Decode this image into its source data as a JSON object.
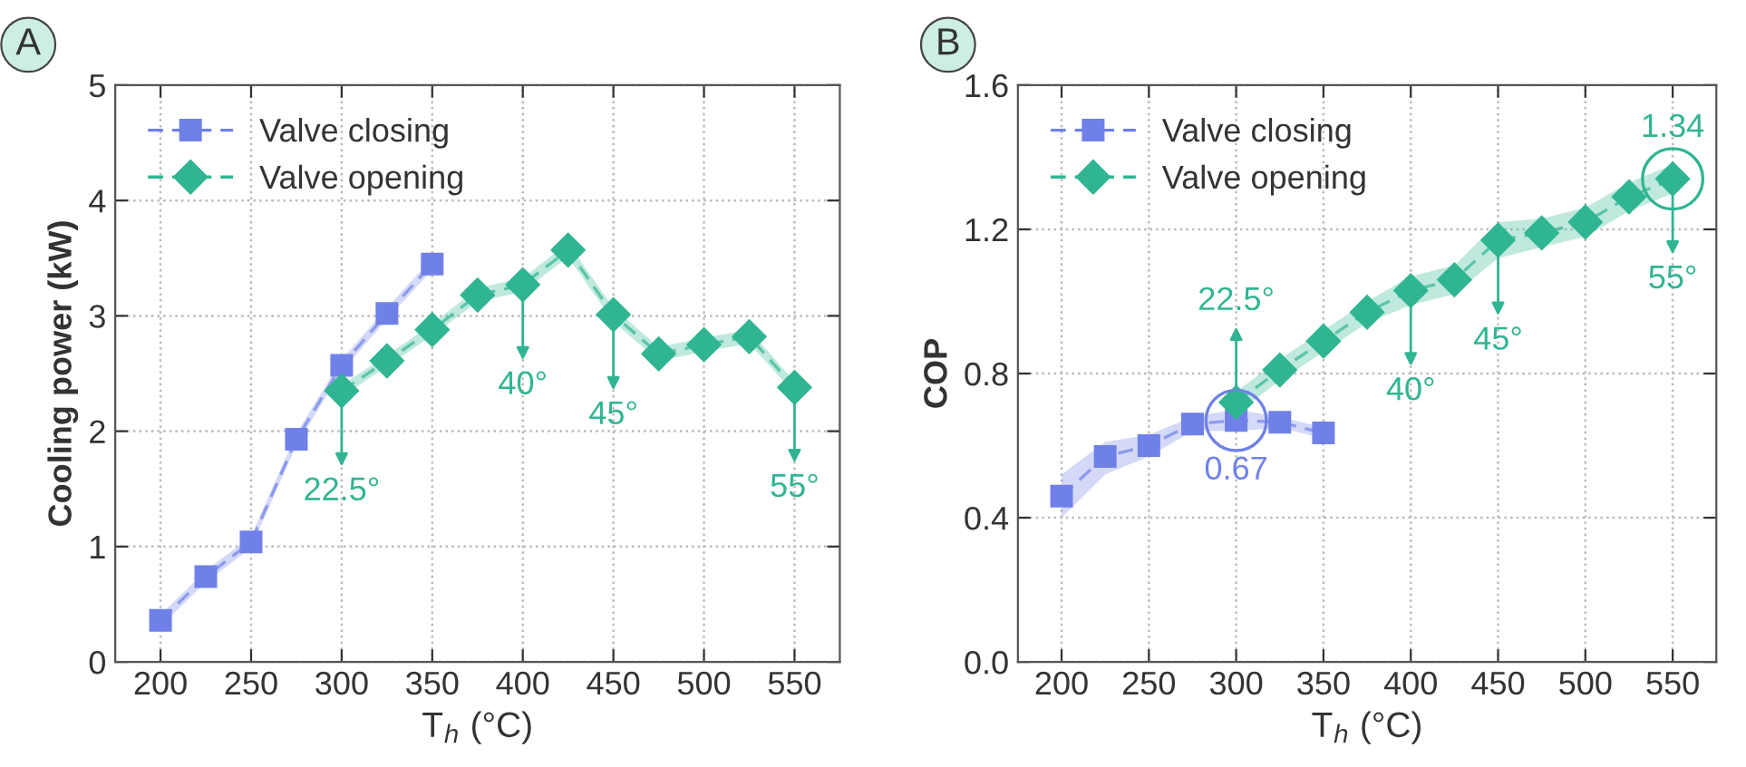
{
  "chart_data": [
    {
      "type": "line",
      "title": "A",
      "xlabel": "T$_{h}$ (°C)",
      "ylabel": "Cooling power (kW)",
      "xlim": [
        175,
        575
      ],
      "xticks": [
        200,
        250,
        300,
        350,
        400,
        450,
        500,
        550
      ],
      "ylim": [
        0,
        5
      ],
      "yticks": [
        0,
        1,
        2,
        3,
        4,
        5
      ],
      "grid": true,
      "legend": "top left",
      "line_style": "dashed",
      "series": [
        {
          "name": "Valve closing",
          "color": "#6f80e8",
          "marker": "square",
          "x": [
            200,
            225,
            250,
            275,
            300,
            325,
            350
          ],
          "values": [
            0.36,
            0.74,
            1.04,
            1.93,
            2.57,
            3.02,
            3.45
          ],
          "lower": [
            0.31,
            0.69,
            0.99,
            1.88,
            2.52,
            2.97,
            3.4
          ],
          "upper": [
            0.41,
            0.79,
            1.09,
            1.98,
            2.62,
            3.07,
            3.5
          ]
        },
        {
          "name": "Valve opening",
          "color": "#2fb592",
          "marker": "diamond",
          "x": [
            300,
            325,
            350,
            375,
            400,
            425,
            450,
            475,
            500,
            525,
            550
          ],
          "values": [
            2.35,
            2.61,
            2.88,
            3.18,
            3.27,
            3.57,
            3.01,
            2.67,
            2.75,
            2.82,
            2.38
          ],
          "lower": [
            2.3,
            2.56,
            2.83,
            3.12,
            3.21,
            3.51,
            2.95,
            2.61,
            2.69,
            2.76,
            2.33
          ],
          "upper": [
            2.4,
            2.66,
            2.93,
            3.24,
            3.33,
            3.63,
            3.07,
            2.73,
            2.81,
            2.88,
            2.43
          ]
        }
      ],
      "annotations": [
        {
          "text": "22.5°",
          "x": 300,
          "y": 2.35
        },
        {
          "text": "40°",
          "x": 400,
          "y": 3.27
        },
        {
          "text": "45°",
          "x": 450,
          "y": 3.01
        },
        {
          "text": "55°",
          "x": 550,
          "y": 2.38
        }
      ]
    },
    {
      "type": "line",
      "title": "B",
      "xlabel": "T$_{h}$ (°C)",
      "ylabel": "COP",
      "xlim": [
        175,
        575
      ],
      "xticks": [
        200,
        250,
        300,
        350,
        400,
        450,
        500,
        550
      ],
      "ylim": [
        0,
        1.6
      ],
      "yticks": [
        {
          "value": 0,
          "label": "0.0"
        },
        0.4,
        0.8,
        1.2,
        1.6
      ],
      "grid": true,
      "legend": "top left",
      "line_style": "dashed",
      "series": [
        {
          "name": "Valve closing",
          "color": "#6f80e8",
          "marker": "square",
          "x": [
            200,
            225,
            250,
            275,
            300,
            325,
            350
          ],
          "values": [
            0.46,
            0.57,
            0.6,
            0.66,
            0.67,
            0.665,
            0.635
          ],
          "lower": [
            0.4,
            0.52,
            0.57,
            0.64,
            0.64,
            0.65,
            0.62
          ],
          "upper": [
            0.52,
            0.61,
            0.63,
            0.68,
            0.7,
            0.68,
            0.65
          ],
          "value_labels": [
            null,
            null,
            null,
            null,
            "0.67",
            null,
            null
          ]
        },
        {
          "name": "Valve opening",
          "color": "#2fb592",
          "marker": "diamond",
          "x": [
            300,
            325,
            350,
            375,
            400,
            425,
            450,
            475,
            500,
            525,
            550
          ],
          "values": [
            0.72,
            0.81,
            0.89,
            0.97,
            1.03,
            1.06,
            1.17,
            1.19,
            1.22,
            1.29,
            1.34
          ],
          "lower": [
            0.69,
            0.78,
            0.86,
            0.94,
            0.99,
            1.02,
            1.12,
            1.15,
            1.18,
            1.25,
            1.3
          ],
          "upper": [
            0.75,
            0.84,
            0.92,
            1.0,
            1.07,
            1.1,
            1.22,
            1.23,
            1.26,
            1.33,
            1.38
          ],
          "value_labels": [
            null,
            null,
            null,
            null,
            null,
            null,
            null,
            null,
            null,
            null,
            "1.34"
          ]
        }
      ],
      "annotations": [
        {
          "text": "22.5°",
          "x": 300,
          "y": 0.72
        },
        {
          "text": "40°",
          "x": 400,
          "y": 1.03
        },
        {
          "text": "45°",
          "x": 450,
          "y": 1.17
        },
        {
          "text": "55°",
          "x": 550,
          "y": 1.34
        }
      ]
    }
  ]
}
